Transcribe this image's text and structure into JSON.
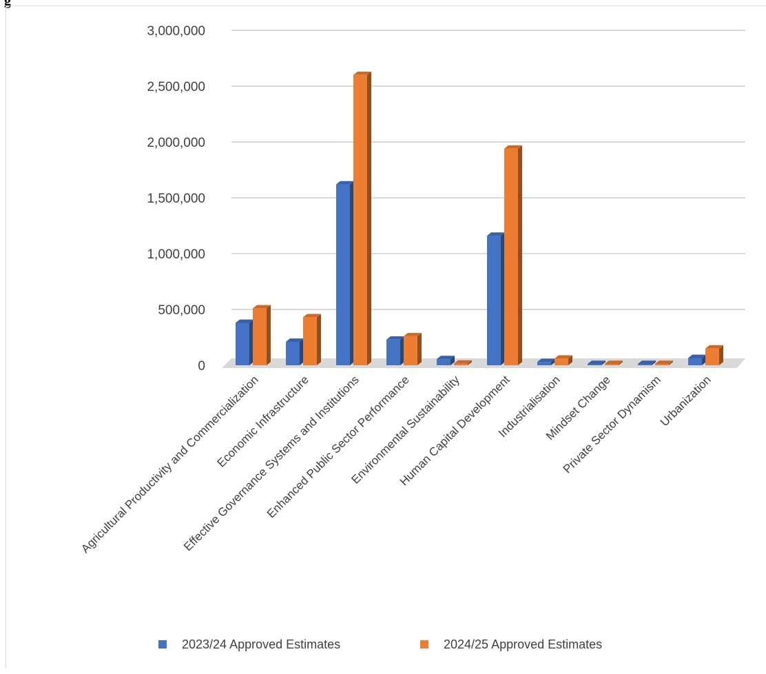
{
  "header": {
    "fragment_text": "g"
  },
  "chart_data": {
    "type": "bar",
    "title": "",
    "xlabel": "",
    "ylabel": "",
    "ylim": [
      0,
      3000000
    ],
    "y_ticks": [
      "0",
      "500,000",
      "1,000,000",
      "1,500,000",
      "2,000,000",
      "2,500,000",
      "3,000,000"
    ],
    "y_tick_values": [
      0,
      500000,
      1000000,
      1500000,
      2000000,
      2500000,
      3000000
    ],
    "grid": true,
    "legend_position": "bottom",
    "categories": [
      "Agricultural Productivity and Commercialization",
      "Economic Infrastructure",
      "Effective Governance Systems and Institutions",
      "Enhanced Public Sector Performance",
      "Environmental Sustainability",
      "Human Capital Development",
      "Industrialisation",
      "Mindset Change",
      "Private Sector Dynamism",
      "Urbanization"
    ],
    "series": [
      {
        "name": "2023/24 Approved Estimates",
        "color": "#4472c4",
        "values": [
          380000,
          210000,
          1620000,
          230000,
          55000,
          1160000,
          30000,
          5000,
          5000,
          65000
        ]
      },
      {
        "name": "2024/25 Approved Estimates",
        "color": "#ed7d31",
        "values": [
          510000,
          430000,
          2600000,
          260000,
          15000,
          1940000,
          60000,
          5000,
          5000,
          150000
        ]
      }
    ]
  }
}
